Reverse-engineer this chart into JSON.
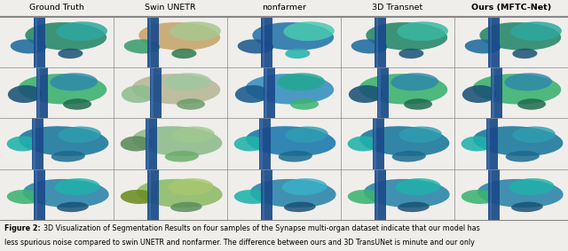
{
  "col_headers": [
    "Ground Truth",
    "Swin UNETR",
    "nonfarmer",
    "3D Transnet",
    "Ours (MFTC-Net)"
  ],
  "n_rows": 4,
  "n_cols": 5,
  "fig_width": 6.4,
  "fig_height": 2.83,
  "dpi": 100,
  "bg_color": "#f0eeeb",
  "header_bg": "#e8e6e3",
  "caption_fontsize": 5.8,
  "header_fontsize": 6.8,
  "header_line_color": "#333333",
  "separator_color": "#888888",
  "caption_line1": "3D Visualization of Segmentation Results on four samples of the Synapse multi-organ dataset indicate that our model has",
  "caption_line2": "less spurious noise compared to swin UNETR and nonfarmer. The difference between ours and 3D TransUNet is minute and our only",
  "aorta_color": "#1a4a8a",
  "row_configs": [
    {
      "cells": [
        {
          "liver": "#2e8b6e",
          "spleen": "#1e6b9e",
          "kidney": "#1a5276",
          "extra": "#2ea89e",
          "bg": "#3ab8a0"
        },
        {
          "liver": "#c8a870",
          "spleen": "#3a9e6e",
          "kidney": "#2e7a4e",
          "extra": "#a8c890",
          "bg": "#b8d890"
        },
        {
          "liver": "#2e7aae",
          "spleen": "#1e5a8e",
          "kidney": "#20b2aa",
          "extra": "#48c9b0",
          "bg": "#3aa8c0"
        },
        {
          "liver": "#2e8b6e",
          "spleen": "#1e6b9e",
          "kidney": "#1a5276",
          "extra": "#3ab8a0",
          "bg": "#3ab8a0"
        },
        {
          "liver": "#2e8b6e",
          "spleen": "#1e6b9e",
          "kidney": "#1a5276",
          "extra": "#2ea89e",
          "bg": "#3ab8a0"
        }
      ]
    },
    {
      "cells": [
        {
          "liver": "#3cb371",
          "spleen": "#1a5276",
          "kidney": "#1e6b4e",
          "extra": "#2e86ab",
          "bg": "#4eb890"
        },
        {
          "liver": "#b8b898",
          "spleen": "#8fbc8f",
          "kidney": "#6a9e6a",
          "extra": "#a0c8a0",
          "bg": "#c8c8a8"
        },
        {
          "liver": "#3a90c0",
          "spleen": "#1a5a8e",
          "kidney": "#3cb371",
          "extra": "#20a890",
          "bg": "#3aa8c0"
        },
        {
          "liver": "#3cb371",
          "spleen": "#1a5276",
          "kidney": "#1e6b4e",
          "extra": "#2e86ab",
          "bg": "#4eb890"
        },
        {
          "liver": "#3cb371",
          "spleen": "#1a5276",
          "kidney": "#1e6b4e",
          "extra": "#2e86ab",
          "bg": "#4eb890"
        }
      ]
    },
    {
      "cells": [
        {
          "liver": "#1e7a9e",
          "spleen": "#20b2aa",
          "kidney": "#1a6a8e",
          "extra": "#2e9eb0",
          "bg": "#28a0b8"
        },
        {
          "liver": "#8fbc8f",
          "spleen": "#5a8a5a",
          "kidney": "#6aae6a",
          "extra": "#a0c890",
          "bg": "#a8c8a8"
        },
        {
          "liver": "#1e7aae",
          "spleen": "#20b2aa",
          "kidney": "#1a6a8e",
          "extra": "#2e9eb0",
          "bg": "#28a0b8"
        },
        {
          "liver": "#1e7a9e",
          "spleen": "#20b2aa",
          "kidney": "#1a6a8e",
          "extra": "#2e9eb0",
          "bg": "#28a0b8"
        },
        {
          "liver": "#1e7a9e",
          "spleen": "#20b2aa",
          "kidney": "#1a6a8e",
          "extra": "#2e9eb0",
          "bg": "#28a0b8"
        }
      ]
    },
    {
      "cells": [
        {
          "liver": "#2e86ab",
          "spleen": "#3cb371",
          "kidney": "#1a5276",
          "extra": "#20b2aa",
          "bg": "#3ab0c8"
        },
        {
          "liver": "#8fbc6a",
          "spleen": "#6b8e23",
          "kidney": "#5a8e5a",
          "extra": "#a8c870",
          "bg": "#a0b870"
        },
        {
          "liver": "#2e86ab",
          "spleen": "#20b2aa",
          "kidney": "#1a5276",
          "extra": "#3ab0c8",
          "bg": "#3ab0c8"
        },
        {
          "liver": "#2e86ab",
          "spleen": "#3cb371",
          "kidney": "#1a5276",
          "extra": "#20b2aa",
          "bg": "#3ab0c8"
        },
        {
          "liver": "#2e86ab",
          "spleen": "#3cb371",
          "kidney": "#1a5276",
          "extra": "#20b2aa",
          "bg": "#3ab0c8"
        }
      ]
    }
  ]
}
